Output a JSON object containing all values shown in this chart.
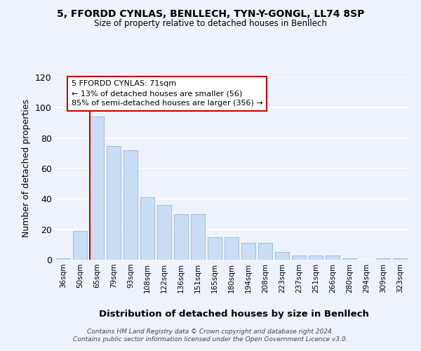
{
  "title1": "5, FFORDD CYNLAS, BENLLECH, TYN-Y-GONGL, LL74 8SP",
  "title2": "Size of property relative to detached houses in Benllech",
  "xlabel": "Distribution of detached houses by size in Benllech",
  "ylabel": "Number of detached properties",
  "categories": [
    "36sqm",
    "50sqm",
    "65sqm",
    "79sqm",
    "93sqm",
    "108sqm",
    "122sqm",
    "136sqm",
    "151sqm",
    "165sqm",
    "180sqm",
    "194sqm",
    "208sqm",
    "223sqm",
    "237sqm",
    "251sqm",
    "266sqm",
    "280sqm",
    "294sqm",
    "309sqm",
    "323sqm"
  ],
  "values": [
    1,
    19,
    94,
    75,
    72,
    41,
    36,
    30,
    30,
    15,
    15,
    11,
    11,
    5,
    3,
    3,
    3,
    1,
    0,
    1,
    1
  ],
  "bar_color": "#c9ddf5",
  "bar_edge_color": "#a0bedd",
  "highlight_bar_index": 2,
  "highlight_color": "#cc0000",
  "annotation_text": "5 FFORDD CYNLAS: 71sqm\n← 13% of detached houses are smaller (56)\n85% of semi-detached houses are larger (356) →",
  "annotation_box_color": "#ffffff",
  "annotation_box_edge": "#cc0000",
  "ylim": [
    0,
    120
  ],
  "yticks": [
    0,
    20,
    40,
    60,
    80,
    100,
    120
  ],
  "background_color": "#eef2fa",
  "grid_color": "#ffffff",
  "footer": "Contains HM Land Registry data © Crown copyright and database right 2024.\nContains public sector information licensed under the Open Government Licence v3.0."
}
